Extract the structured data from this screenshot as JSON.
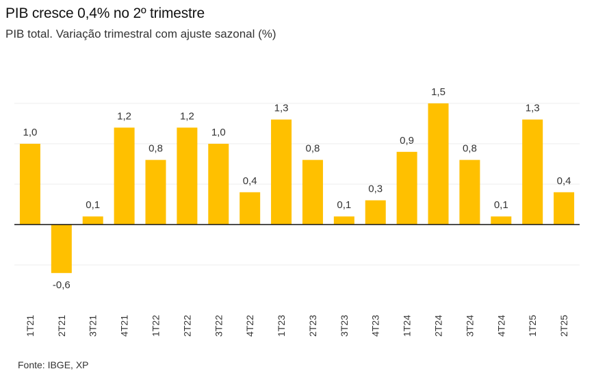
{
  "header": {
    "title": "PIB cresce 0,4% no 2º trimestre",
    "subtitle": "PIB total. Variação trimestral com ajuste sazonal (%)"
  },
  "footer": {
    "source": "Fonte: IBGE, XP"
  },
  "colors": {
    "bar": "#FFC000"
  },
  "chart_data": {
    "type": "bar",
    "title": "PIB cresce 0,4% no 2º trimestre",
    "subtitle": "PIB total. Variação trimestral com ajuste sazonal (%)",
    "categories": [
      "1T21",
      "2T21",
      "3T21",
      "4T21",
      "1T22",
      "2T22",
      "3T22",
      "4T22",
      "1T23",
      "2T23",
      "3T23",
      "4T23",
      "1T24",
      "2T24",
      "3T24",
      "4T24",
      "1T25",
      "2T25"
    ],
    "values": [
      1.0,
      -0.6,
      0.1,
      1.2,
      0.8,
      1.2,
      1.0,
      0.4,
      1.3,
      0.8,
      0.1,
      0.3,
      0.9,
      1.5,
      0.8,
      0.1,
      1.3,
      0.4
    ],
    "value_labels": [
      "1,0",
      "-0,6",
      "0,1",
      "1,2",
      "0,8",
      "1,2",
      "1,0",
      "0,4",
      "1,3",
      "0,8",
      "0,1",
      "0,3",
      "0,9",
      "1,5",
      "0,8",
      "0,1",
      "1,3",
      "0,4"
    ],
    "ylim": [
      -1.0,
      2.0
    ],
    "grid": true,
    "legend": "none",
    "xlabel": "",
    "ylabel": ""
  }
}
